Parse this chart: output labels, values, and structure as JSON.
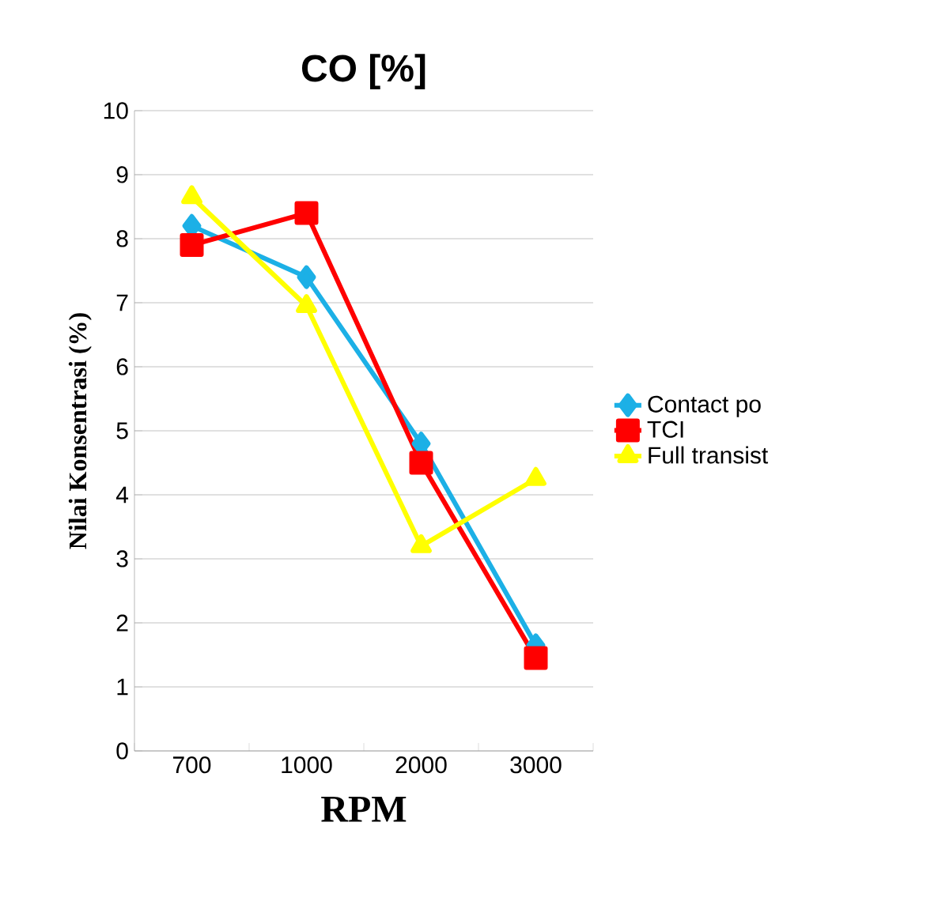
{
  "chart_data": {
    "type": "line",
    "title": "CO [%]",
    "xlabel": "RPM",
    "ylabel": "Nilai Konsentrasi (%)",
    "categories": [
      "700",
      "1000",
      "2000",
      "3000"
    ],
    "series": [
      {
        "name": "Contact po",
        "color": "#1cb0e6",
        "marker": "diamond",
        "values": [
          8.2,
          7.4,
          4.8,
          1.65
        ]
      },
      {
        "name": "TCI",
        "color": "#ff0000",
        "marker": "square",
        "values": [
          7.9,
          8.4,
          4.5,
          1.45
        ]
      },
      {
        "name": "Full transist",
        "color": "#ffff00",
        "marker": "triangle",
        "values": [
          8.65,
          6.95,
          3.2,
          4.25
        ]
      }
    ],
    "ylim": [
      0,
      10
    ],
    "yticks": [
      0,
      1,
      2,
      3,
      4,
      5,
      6,
      7,
      8,
      9,
      10
    ],
    "grid": "y",
    "legend": "right"
  }
}
